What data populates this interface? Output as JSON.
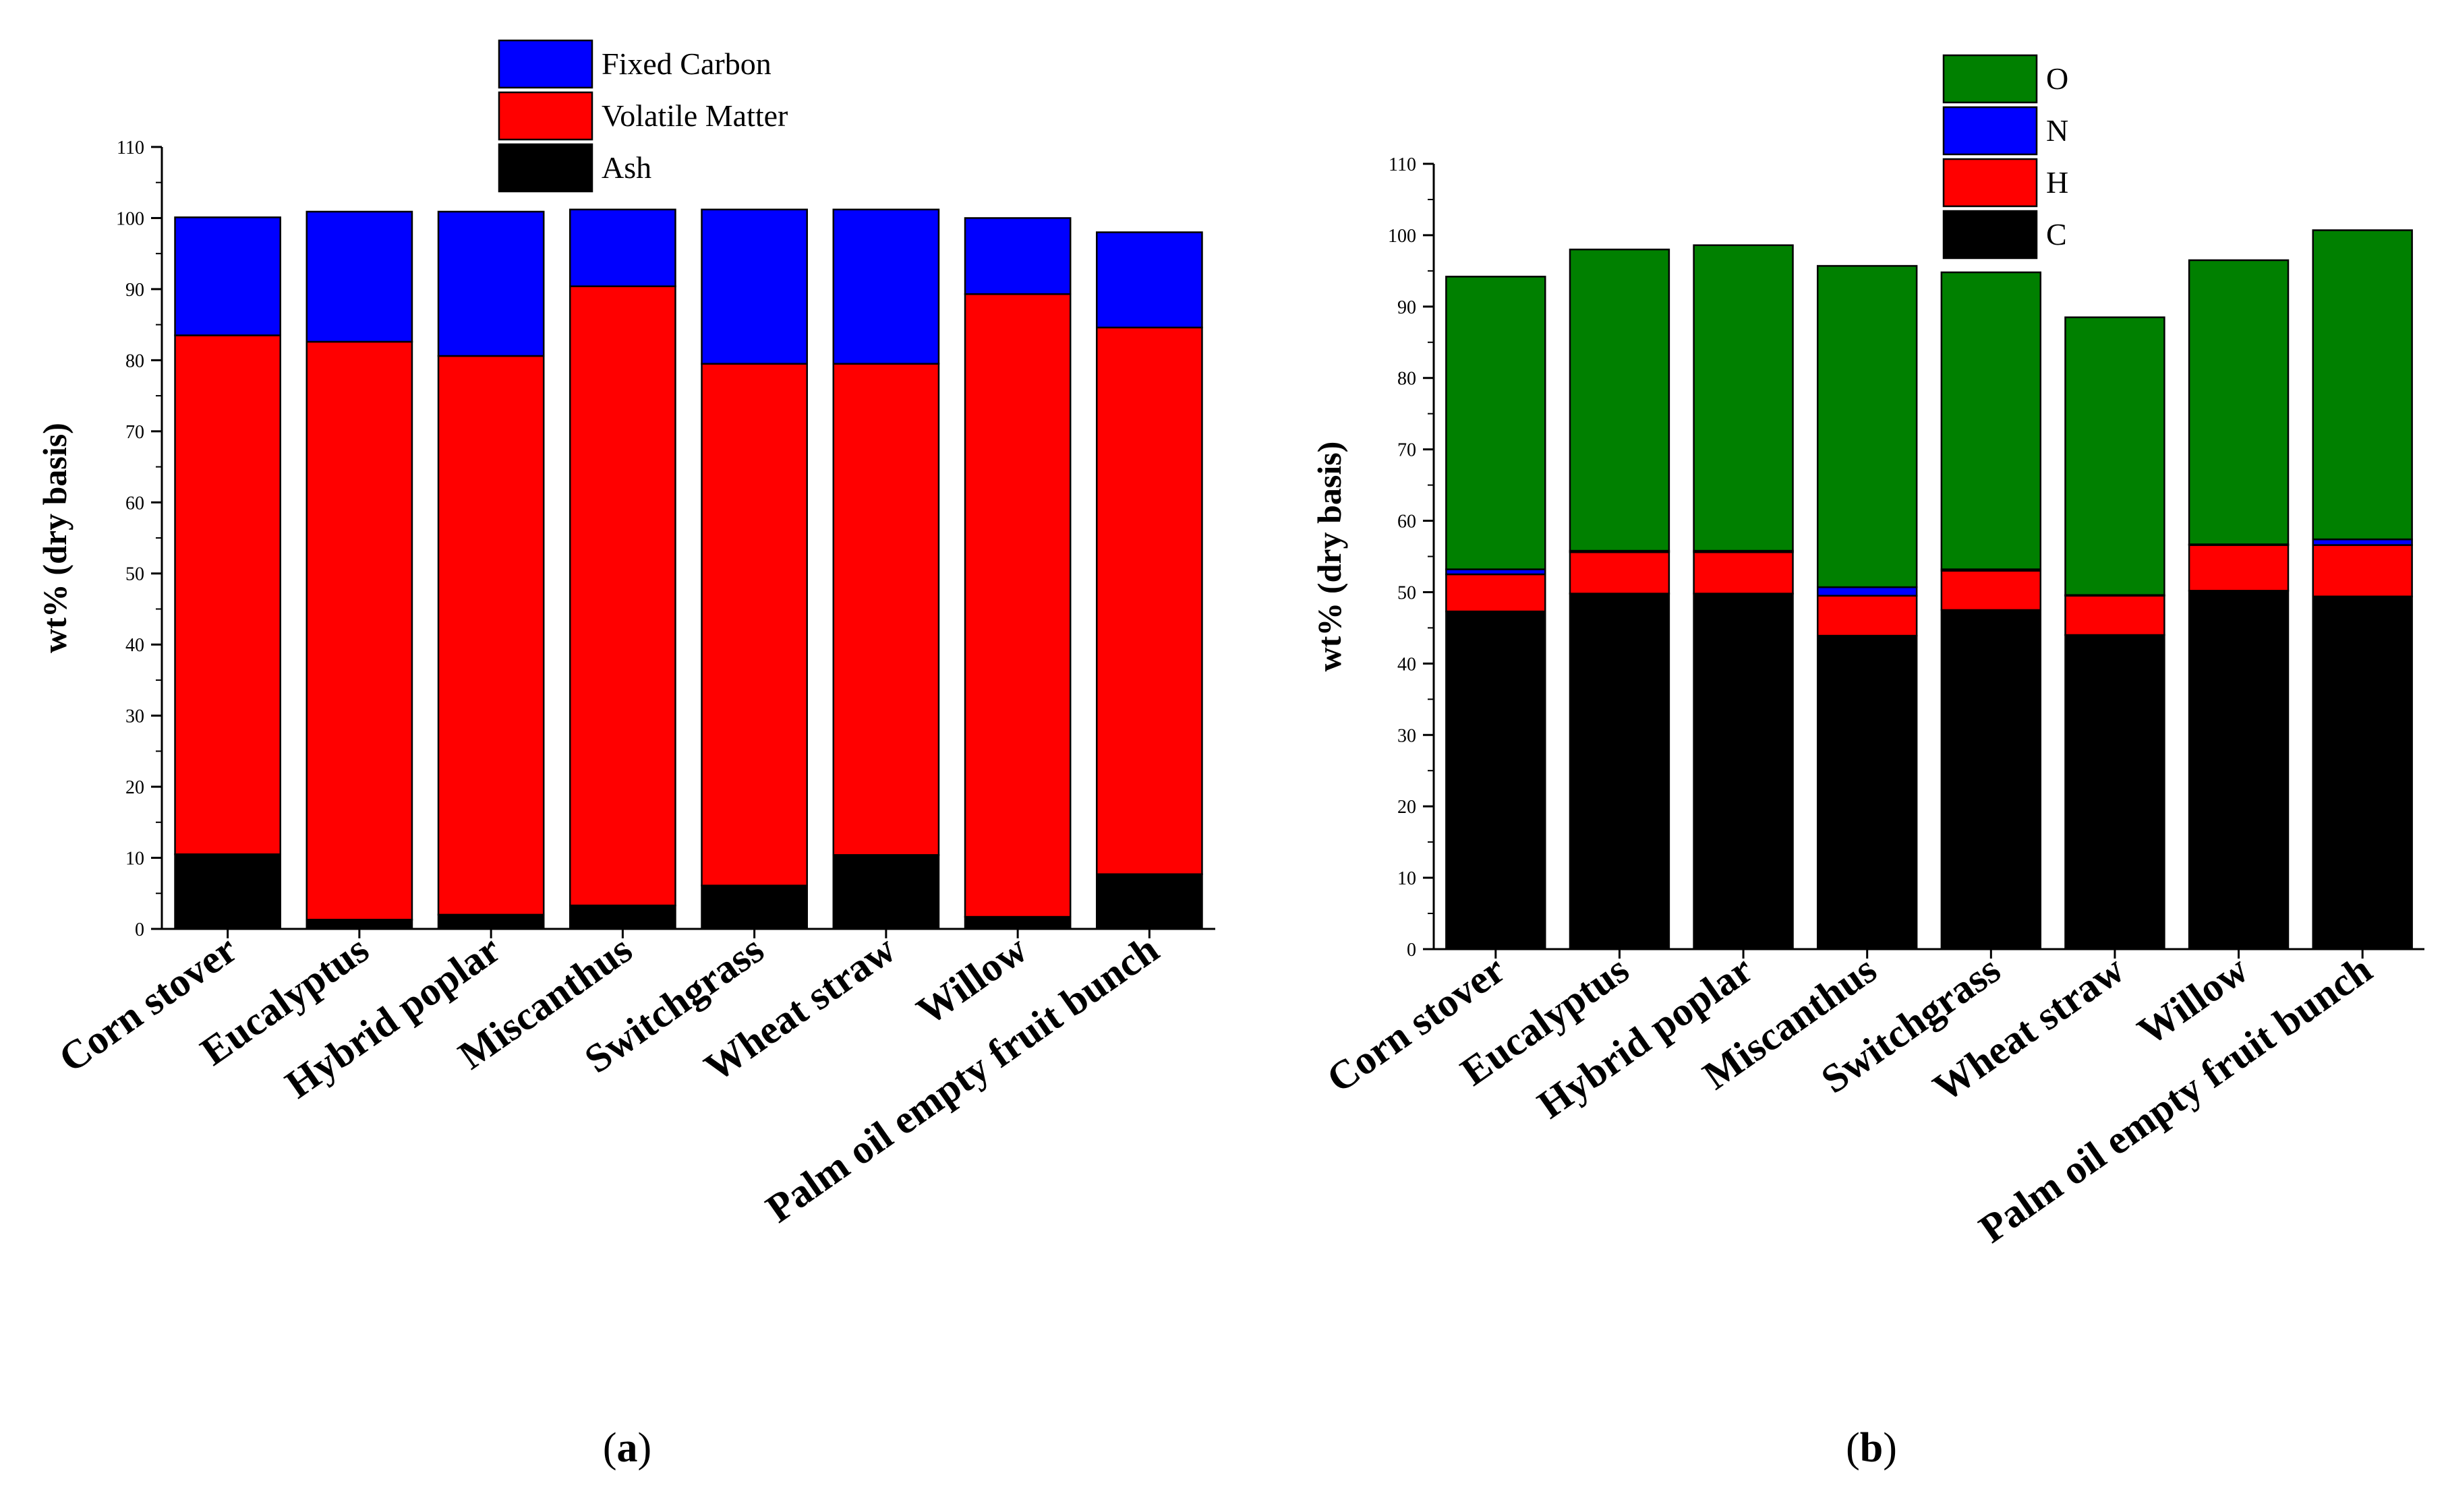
{
  "chart_data": [
    {
      "type": "bar",
      "stacked": true,
      "panel_label": "a",
      "ylabel": "wt% (dry basis)",
      "xlabel": "",
      "ylim": [
        0,
        110
      ],
      "yticks": [
        0,
        10,
        20,
        30,
        40,
        50,
        60,
        70,
        80,
        90,
        100,
        110
      ],
      "grid": false,
      "legend_position": "top-right",
      "categories": [
        "Corn stover",
        "Eucalyptus",
        "Hybrid poplar",
        "Miscanthus",
        "Switchgrass",
        "Wheat straw",
        "Willow",
        "Palm oil empty fruit bunch"
      ],
      "series": [
        {
          "name": "Ash",
          "color": "#000000",
          "values": [
            10.5,
            1.3,
            2.0,
            3.3,
            6.1,
            10.4,
            1.7,
            7.7
          ]
        },
        {
          "name": "Volatile Matter",
          "color": "#ff0000",
          "values": [
            73.0,
            81.3,
            78.6,
            87.1,
            73.4,
            69.1,
            87.6,
            76.9
          ]
        },
        {
          "name": "Fixed Carbon",
          "color": "#0000ff",
          "values": [
            16.6,
            18.3,
            20.3,
            10.8,
            21.7,
            21.7,
            10.7,
            13.4
          ]
        }
      ],
      "legend_order": [
        "Fixed Carbon",
        "Volatile Matter",
        "Ash"
      ]
    },
    {
      "type": "bar",
      "stacked": true,
      "panel_label": "b",
      "ylabel": "wt% (dry basis)",
      "xlabel": "",
      "ylim": [
        0,
        110
      ],
      "yticks": [
        0,
        10,
        20,
        30,
        40,
        50,
        60,
        70,
        80,
        90,
        100,
        110
      ],
      "grid": false,
      "legend_position": "top-right",
      "categories": [
        "Corn stover",
        "Eucalyptus",
        "Hybrid poplar",
        "Miscanthus",
        "Switchgrass",
        "Wheat straw",
        "Willow",
        "Palm oil empty fruit bunch"
      ],
      "series": [
        {
          "name": "C",
          "color": "#000000",
          "values": [
            47.3,
            49.8,
            49.8,
            43.9,
            47.5,
            44.0,
            50.2,
            49.4
          ]
        },
        {
          "name": "H",
          "color": "#ff0000",
          "values": [
            5.2,
            5.8,
            5.8,
            5.6,
            5.5,
            5.5,
            6.4,
            7.2
          ]
        },
        {
          "name": "N",
          "color": "#0000ff",
          "values": [
            0.7,
            0.2,
            0.2,
            1.2,
            0.2,
            0.1,
            0.1,
            0.8
          ]
        },
        {
          "name": "O",
          "color": "#008000",
          "values": [
            41.0,
            42.2,
            42.8,
            45.0,
            41.6,
            38.9,
            39.8,
            43.3
          ]
        }
      ],
      "legend_order": [
        "O",
        "N",
        "H",
        "C"
      ]
    }
  ]
}
